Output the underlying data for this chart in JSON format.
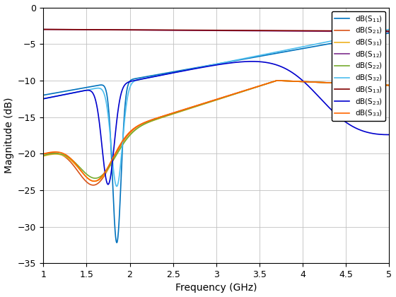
{
  "xlabel": "Frequency (GHz)",
  "ylabel": "Magnitude (dB)",
  "xlim": [
    1,
    5
  ],
  "ylim": [
    -35,
    0
  ],
  "xticks": [
    1,
    1.5,
    2,
    2.5,
    3,
    3.5,
    4,
    4.5,
    5
  ],
  "yticks": [
    0,
    -5,
    -10,
    -15,
    -20,
    -25,
    -30,
    -35
  ],
  "series": [
    {
      "label": "dB(S_{11})",
      "color": "#0072BD",
      "linewidth": 1.2
    },
    {
      "label": "dB(S_{21})",
      "color": "#D95319",
      "linewidth": 1.2
    },
    {
      "label": "dB(S_{31})",
      "color": "#EDB120",
      "linewidth": 1.2
    },
    {
      "label": "dB(S_{12})",
      "color": "#7E2F8E",
      "linewidth": 1.2
    },
    {
      "label": "dB(S_{22})",
      "color": "#77AC30",
      "linewidth": 1.2
    },
    {
      "label": "dB(S_{32})",
      "color": "#4DBEEE",
      "linewidth": 1.2
    },
    {
      "label": "dB(S_{13})",
      "color": "#800000",
      "linewidth": 1.2
    },
    {
      "label": "dB(S_{23})",
      "color": "#0000CD",
      "linewidth": 1.2
    },
    {
      "label": "dB(S_{33})",
      "color": "#FF6600",
      "linewidth": 1.2
    }
  ],
  "background_color": "#FFFFFF",
  "grid_color": "#C0C0C0"
}
